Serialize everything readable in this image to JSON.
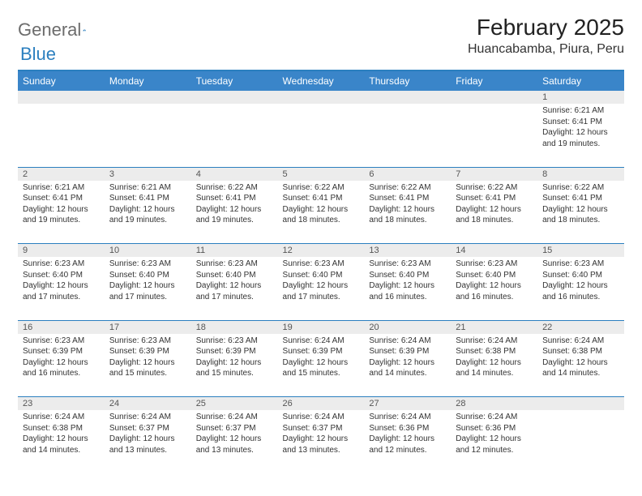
{
  "brand": {
    "name_part1": "General",
    "name_part2": "Blue"
  },
  "title": "February 2025",
  "location": "Huancabamba, Piura, Peru",
  "colors": {
    "header_bg": "#3a85c9",
    "header_rule": "#2b7fbf",
    "daynum_bg": "#ececec",
    "text": "#333333",
    "brand_gray": "#6c6c6c",
    "brand_blue": "#2b7fbf"
  },
  "weekdays": [
    "Sunday",
    "Monday",
    "Tuesday",
    "Wednesday",
    "Thursday",
    "Friday",
    "Saturday"
  ],
  "weeks": [
    [
      {
        "n": "",
        "sunrise": "",
        "sunset": "",
        "daylight": ""
      },
      {
        "n": "",
        "sunrise": "",
        "sunset": "",
        "daylight": ""
      },
      {
        "n": "",
        "sunrise": "",
        "sunset": "",
        "daylight": ""
      },
      {
        "n": "",
        "sunrise": "",
        "sunset": "",
        "daylight": ""
      },
      {
        "n": "",
        "sunrise": "",
        "sunset": "",
        "daylight": ""
      },
      {
        "n": "",
        "sunrise": "",
        "sunset": "",
        "daylight": ""
      },
      {
        "n": "1",
        "sunrise": "Sunrise: 6:21 AM",
        "sunset": "Sunset: 6:41 PM",
        "daylight": "Daylight: 12 hours and 19 minutes."
      }
    ],
    [
      {
        "n": "2",
        "sunrise": "Sunrise: 6:21 AM",
        "sunset": "Sunset: 6:41 PM",
        "daylight": "Daylight: 12 hours and 19 minutes."
      },
      {
        "n": "3",
        "sunrise": "Sunrise: 6:21 AM",
        "sunset": "Sunset: 6:41 PM",
        "daylight": "Daylight: 12 hours and 19 minutes."
      },
      {
        "n": "4",
        "sunrise": "Sunrise: 6:22 AM",
        "sunset": "Sunset: 6:41 PM",
        "daylight": "Daylight: 12 hours and 19 minutes."
      },
      {
        "n": "5",
        "sunrise": "Sunrise: 6:22 AM",
        "sunset": "Sunset: 6:41 PM",
        "daylight": "Daylight: 12 hours and 18 minutes."
      },
      {
        "n": "6",
        "sunrise": "Sunrise: 6:22 AM",
        "sunset": "Sunset: 6:41 PM",
        "daylight": "Daylight: 12 hours and 18 minutes."
      },
      {
        "n": "7",
        "sunrise": "Sunrise: 6:22 AM",
        "sunset": "Sunset: 6:41 PM",
        "daylight": "Daylight: 12 hours and 18 minutes."
      },
      {
        "n": "8",
        "sunrise": "Sunrise: 6:22 AM",
        "sunset": "Sunset: 6:41 PM",
        "daylight": "Daylight: 12 hours and 18 minutes."
      }
    ],
    [
      {
        "n": "9",
        "sunrise": "Sunrise: 6:23 AM",
        "sunset": "Sunset: 6:40 PM",
        "daylight": "Daylight: 12 hours and 17 minutes."
      },
      {
        "n": "10",
        "sunrise": "Sunrise: 6:23 AM",
        "sunset": "Sunset: 6:40 PM",
        "daylight": "Daylight: 12 hours and 17 minutes."
      },
      {
        "n": "11",
        "sunrise": "Sunrise: 6:23 AM",
        "sunset": "Sunset: 6:40 PM",
        "daylight": "Daylight: 12 hours and 17 minutes."
      },
      {
        "n": "12",
        "sunrise": "Sunrise: 6:23 AM",
        "sunset": "Sunset: 6:40 PM",
        "daylight": "Daylight: 12 hours and 17 minutes."
      },
      {
        "n": "13",
        "sunrise": "Sunrise: 6:23 AM",
        "sunset": "Sunset: 6:40 PM",
        "daylight": "Daylight: 12 hours and 16 minutes."
      },
      {
        "n": "14",
        "sunrise": "Sunrise: 6:23 AM",
        "sunset": "Sunset: 6:40 PM",
        "daylight": "Daylight: 12 hours and 16 minutes."
      },
      {
        "n": "15",
        "sunrise": "Sunrise: 6:23 AM",
        "sunset": "Sunset: 6:40 PM",
        "daylight": "Daylight: 12 hours and 16 minutes."
      }
    ],
    [
      {
        "n": "16",
        "sunrise": "Sunrise: 6:23 AM",
        "sunset": "Sunset: 6:39 PM",
        "daylight": "Daylight: 12 hours and 16 minutes."
      },
      {
        "n": "17",
        "sunrise": "Sunrise: 6:23 AM",
        "sunset": "Sunset: 6:39 PM",
        "daylight": "Daylight: 12 hours and 15 minutes."
      },
      {
        "n": "18",
        "sunrise": "Sunrise: 6:23 AM",
        "sunset": "Sunset: 6:39 PM",
        "daylight": "Daylight: 12 hours and 15 minutes."
      },
      {
        "n": "19",
        "sunrise": "Sunrise: 6:24 AM",
        "sunset": "Sunset: 6:39 PM",
        "daylight": "Daylight: 12 hours and 15 minutes."
      },
      {
        "n": "20",
        "sunrise": "Sunrise: 6:24 AM",
        "sunset": "Sunset: 6:39 PM",
        "daylight": "Daylight: 12 hours and 14 minutes."
      },
      {
        "n": "21",
        "sunrise": "Sunrise: 6:24 AM",
        "sunset": "Sunset: 6:38 PM",
        "daylight": "Daylight: 12 hours and 14 minutes."
      },
      {
        "n": "22",
        "sunrise": "Sunrise: 6:24 AM",
        "sunset": "Sunset: 6:38 PM",
        "daylight": "Daylight: 12 hours and 14 minutes."
      }
    ],
    [
      {
        "n": "23",
        "sunrise": "Sunrise: 6:24 AM",
        "sunset": "Sunset: 6:38 PM",
        "daylight": "Daylight: 12 hours and 14 minutes."
      },
      {
        "n": "24",
        "sunrise": "Sunrise: 6:24 AM",
        "sunset": "Sunset: 6:37 PM",
        "daylight": "Daylight: 12 hours and 13 minutes."
      },
      {
        "n": "25",
        "sunrise": "Sunrise: 6:24 AM",
        "sunset": "Sunset: 6:37 PM",
        "daylight": "Daylight: 12 hours and 13 minutes."
      },
      {
        "n": "26",
        "sunrise": "Sunrise: 6:24 AM",
        "sunset": "Sunset: 6:37 PM",
        "daylight": "Daylight: 12 hours and 13 minutes."
      },
      {
        "n": "27",
        "sunrise": "Sunrise: 6:24 AM",
        "sunset": "Sunset: 6:36 PM",
        "daylight": "Daylight: 12 hours and 12 minutes."
      },
      {
        "n": "28",
        "sunrise": "Sunrise: 6:24 AM",
        "sunset": "Sunset: 6:36 PM",
        "daylight": "Daylight: 12 hours and 12 minutes."
      },
      {
        "n": "",
        "sunrise": "",
        "sunset": "",
        "daylight": ""
      }
    ]
  ]
}
